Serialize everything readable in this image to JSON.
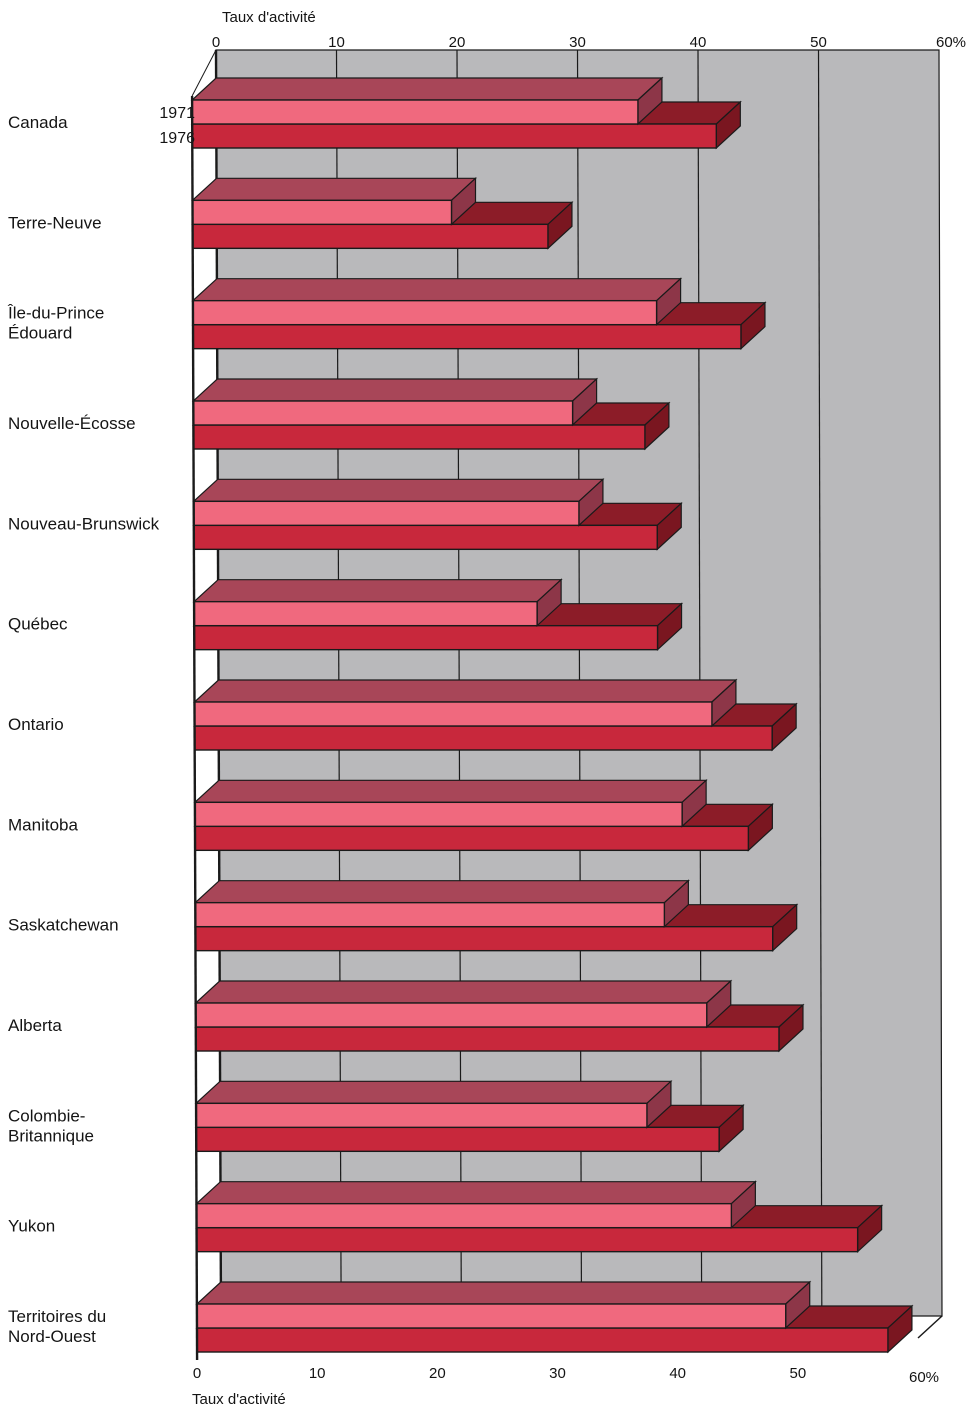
{
  "chart_data": {
    "type": "bar",
    "orientation": "horizontal",
    "style": "3d",
    "title": "",
    "xlabel": "Taux d'activité",
    "x_axis_label_top": "Taux d'activité",
    "x_axis_label_bottom": "Taux d'activité",
    "xlim": [
      0,
      60
    ],
    "x_ticks": [
      "0",
      "10",
      "20",
      "30",
      "40",
      "50",
      "60%"
    ],
    "grid": true,
    "legend_labels_on_first_bar": true,
    "categories": [
      [
        "Canada"
      ],
      [
        "Terre-Neuve"
      ],
      [
        "Île-du-Prince",
        "Édouard"
      ],
      [
        "Nouvelle-Écosse"
      ],
      [
        "Nouveau-Brunswick"
      ],
      [
        "Québec"
      ],
      [
        "Ontario"
      ],
      [
        "Manitoba"
      ],
      [
        "Saskatchewan"
      ],
      [
        "Alberta"
      ],
      [
        "Colombie-",
        "Britannique"
      ],
      [
        "Yukon"
      ],
      [
        "Territoires du",
        "Nord-Ouest"
      ]
    ],
    "series": [
      {
        "name": "1971",
        "color": "#f0697e",
        "top_color": "#a84658",
        "values": [
          37.0,
          21.5,
          38.5,
          31.5,
          32.0,
          28.5,
          43.0,
          40.5,
          39.0,
          42.5,
          37.5,
          44.5,
          49.0
        ]
      },
      {
        "name": "1976",
        "color": "#c8283c",
        "top_color": "#8c1c28",
        "values": [
          43.5,
          29.5,
          45.5,
          37.5,
          38.5,
          38.5,
          48.0,
          46.0,
          48.0,
          48.5,
          43.5,
          55.0,
          57.5
        ]
      }
    ]
  }
}
